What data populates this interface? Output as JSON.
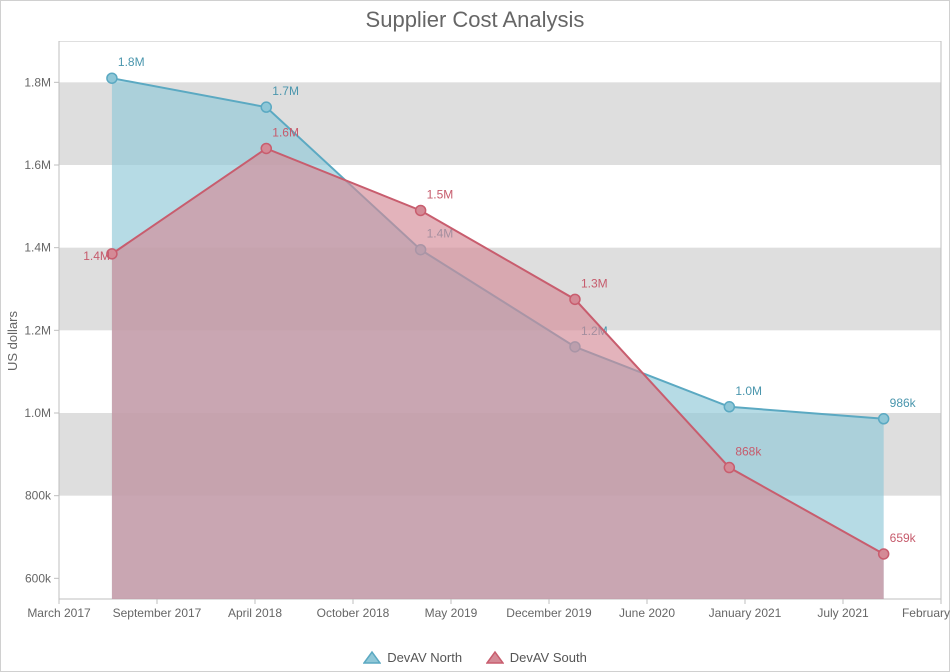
{
  "title": "Supplier Cost Analysis",
  "y_axis_label": "US dollars",
  "chart": {
    "type": "area",
    "background_color": "#ffffff",
    "grid_band_color": "#dedede",
    "axis_line_color": "#bfbfbf",
    "tick_text_color": "#666666",
    "y_axis": {
      "min": 550000,
      "max": 1900000,
      "ticks": [
        {
          "value": 600000,
          "label": "600k"
        },
        {
          "value": 800000,
          "label": "800k"
        },
        {
          "value": 1000000,
          "label": "1.0M"
        },
        {
          "value": 1200000,
          "label": "1.2M"
        },
        {
          "value": 1400000,
          "label": "1.4M"
        },
        {
          "value": 1600000,
          "label": "1.6M"
        },
        {
          "value": 1800000,
          "label": "1.8M"
        }
      ]
    },
    "x_axis": {
      "labels": [
        "March 2017",
        "September 2017",
        "April 2018",
        "October 2018",
        "May 2019",
        "December 2019",
        "June 2020",
        "January 2021",
        "July 2021",
        "February 2022"
      ]
    },
    "series": [
      {
        "name": "DevAV North",
        "stroke_color": "#5ba9c2",
        "fill_color": "#8fc7d7",
        "fill_opacity": 0.65,
        "label_color": "#4a96ad",
        "marker_radius": 5,
        "points": [
          {
            "t": 0.06,
            "value": 1810000,
            "label": "1.8M"
          },
          {
            "t": 0.235,
            "value": 1740000,
            "label": "1.7M"
          },
          {
            "t": 0.41,
            "value": 1395000,
            "label": "1.4M"
          },
          {
            "t": 0.585,
            "value": 1160000,
            "label": "1.2M"
          },
          {
            "t": 0.76,
            "value": 1015000,
            "label": "1.0M"
          },
          {
            "t": 0.935,
            "value": 986000,
            "label": "986k"
          }
        ]
      },
      {
        "name": "DevAV South",
        "stroke_color": "#c85d6e",
        "fill_color": "#d48a96",
        "fill_opacity": 0.65,
        "label_color": "#c65b6c",
        "marker_radius": 5,
        "points": [
          {
            "t": 0.06,
            "value": 1385000,
            "label": "1.4M"
          },
          {
            "t": 0.235,
            "value": 1640000,
            "label": "1.6M"
          },
          {
            "t": 0.41,
            "value": 1490000,
            "label": "1.5M"
          },
          {
            "t": 0.585,
            "value": 1275000,
            "label": "1.3M"
          },
          {
            "t": 0.76,
            "value": 868000,
            "label": "868k"
          },
          {
            "t": 0.935,
            "value": 659000,
            "label": "659k"
          }
        ]
      }
    ],
    "legend": [
      {
        "label": "DevAV North",
        "fill": "#8fc7d7",
        "stroke": "#5ba9c2"
      },
      {
        "label": "DevAV South",
        "fill": "#d48a96",
        "stroke": "#c85d6e"
      }
    ]
  }
}
